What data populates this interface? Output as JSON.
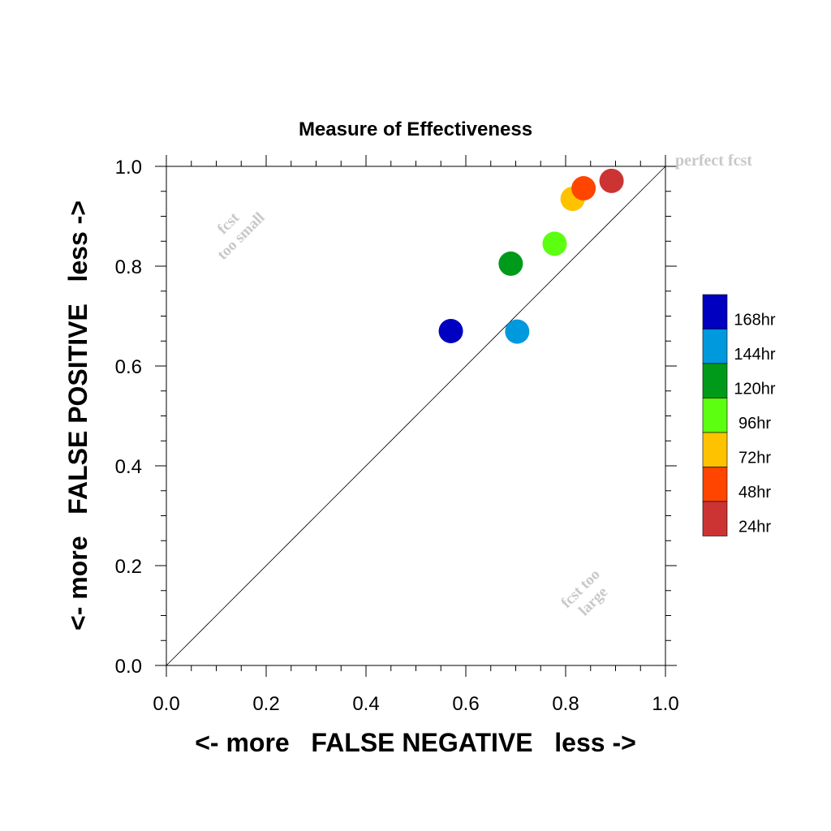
{
  "chart_data": {
    "type": "scatter",
    "title": "Measure of Effectiveness",
    "xlabel": "<- more   FALSE NEGATIVE   less ->",
    "ylabel": "<- more   FALSE POSITIVE   less ->",
    "xlim": [
      0.0,
      1.0
    ],
    "ylim": [
      0.0,
      1.0
    ],
    "x_ticks": [
      "0.0",
      "0.2",
      "0.4",
      "0.6",
      "0.8",
      "1.0"
    ],
    "y_ticks": [
      "0.0",
      "0.2",
      "0.4",
      "0.6",
      "0.8",
      "1.0"
    ],
    "grid": false,
    "legend_position": "right",
    "reference_line": "diagonal",
    "annotations": {
      "perfect": "perfect fcst",
      "small_line1": "fcst",
      "small_line2": "too small",
      "large_line1": "fcst too",
      "large_line2": "large"
    },
    "series": [
      {
        "name": "168hr",
        "color": "#0000c0",
        "x": 0.57,
        "y": 0.67
      },
      {
        "name": "144hr",
        "color": "#0099dd",
        "x": 0.703,
        "y": 0.669
      },
      {
        "name": "120hr",
        "color": "#009a1a",
        "x": 0.69,
        "y": 0.805
      },
      {
        "name": "96hr",
        "color": "#5cff0f",
        "x": 0.778,
        "y": 0.845
      },
      {
        "name": "72hr",
        "color": "#ffc200",
        "x": 0.814,
        "y": 0.935
      },
      {
        "name": "48hr",
        "color": "#ff4500",
        "x": 0.836,
        "y": 0.956
      },
      {
        "name": "24hr",
        "color": "#cc3333",
        "x": 0.892,
        "y": 0.971
      }
    ]
  }
}
